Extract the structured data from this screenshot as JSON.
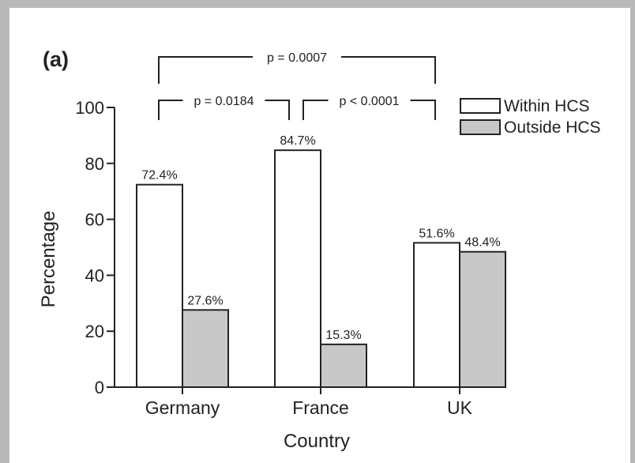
{
  "chart_data": {
    "type": "bar",
    "panel_label": "(a)",
    "title": "",
    "xlabel": "Country",
    "ylabel": "Percentage",
    "ylim": [
      0,
      100
    ],
    "yticks": [
      0,
      20,
      40,
      60,
      80,
      100
    ],
    "categories": [
      "Germany",
      "France",
      "UK"
    ],
    "series": [
      {
        "name": "Within HCS",
        "color": "#ffffff",
        "values": [
          72.4,
          84.7,
          51.6
        ],
        "labels": [
          "72.4%",
          "84.7%",
          "51.6%"
        ]
      },
      {
        "name": "Outside HCS",
        "color": "#c8c8c8",
        "values": [
          27.6,
          15.3,
          48.4
        ],
        "labels": [
          "27.6%",
          "15.3%",
          "48.4%"
        ]
      }
    ],
    "legend_position": "top-right",
    "grid": false,
    "comparisons": [
      {
        "from": "Germany",
        "to": "UK",
        "label": "p = 0.0007"
      },
      {
        "from": "Germany",
        "to": "France",
        "label": "p = 0.0184"
      },
      {
        "from": "France",
        "to": "UK",
        "label": "p < 0.0001"
      }
    ]
  }
}
